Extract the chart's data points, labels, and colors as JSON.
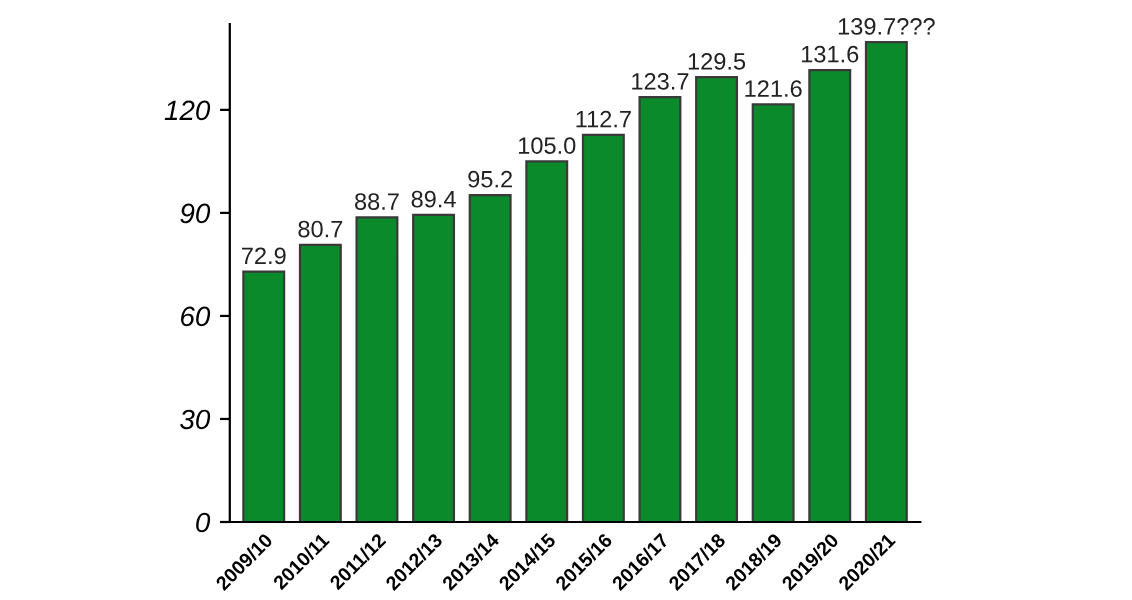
{
  "chart_data": {
    "type": "bar",
    "categories": [
      "2009/10",
      "2010/11",
      "2011/12",
      "2012/13",
      "2013/14",
      "2014/15",
      "2015/16",
      "2016/17",
      "2017/18",
      "2018/19",
      "2019/20",
      "2020/21"
    ],
    "values": [
      72.9,
      80.7,
      88.7,
      89.4,
      95.2,
      105.0,
      112.7,
      123.7,
      129.5,
      121.6,
      131.6,
      139.7
    ],
    "value_labels": [
      "72.9",
      "80.7",
      "88.7",
      "89.4",
      "95.2",
      "105.0",
      "112.7",
      "123.7",
      "129.5",
      "121.6",
      "131.6",
      "139.7???"
    ],
    "color": "#0b8a2c",
    "ylim": [
      0,
      145
    ],
    "yticks": [
      0,
      30,
      60,
      90,
      120
    ],
    "grid": false,
    "legend": false
  }
}
